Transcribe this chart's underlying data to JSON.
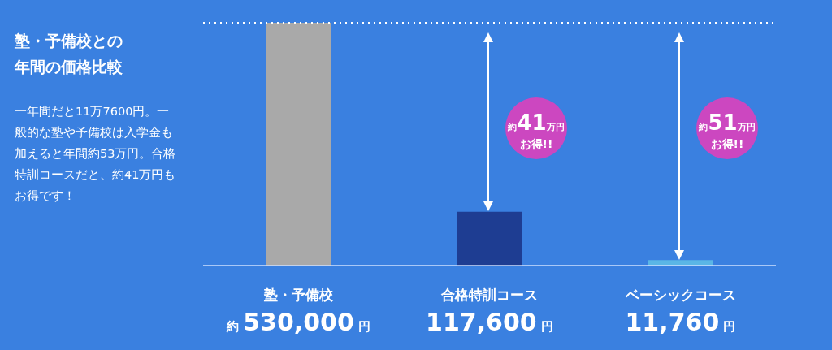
{
  "chart_data": {
    "type": "bar",
    "title": "塾・予備校との年間の価格比較",
    "subtitle": "一年間だと11万7600円。一般的な塾や予備校は入学金も加えると年間約53万円。合格特訓コースだと、約41万円もお得です！",
    "categories": [
      "塾・予備校",
      "合格特訓コース",
      "ベーシックコース"
    ],
    "values": [
      530000,
      117600,
      11760
    ],
    "colors": [
      "#a9a9a9",
      "#1e3d92",
      "#5ab6e6"
    ],
    "value_labels": [
      "約 530,000 円",
      "117,600 円",
      "11,760 円"
    ],
    "annotations": [
      "約41万円お得!!",
      "約51万円お得!!"
    ],
    "ref_lines": [
      {
        "axis": "y",
        "value": 530000,
        "line_style": "dotted",
        "color": "#ffffff"
      }
    ]
  }
}
